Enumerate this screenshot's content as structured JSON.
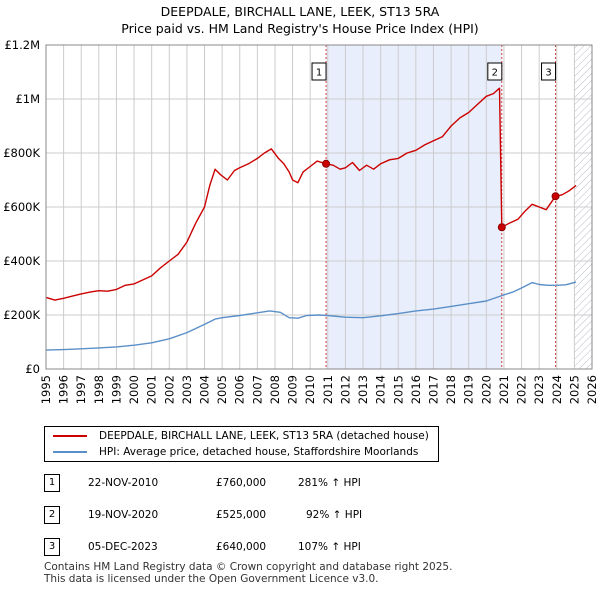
{
  "chart_data": {
    "type": "line",
    "title": "DEEPDALE, BIRCHALL LANE, LEEK, ST13 5RA",
    "subtitle": "Price paid vs. HM Land Registry's House Price Index (HPI)",
    "xlabel": "",
    "ylabel": "",
    "xlim": [
      1995,
      2026
    ],
    "ylim": [
      0,
      1200000
    ],
    "grid": true,
    "y_ticks": [
      {
        "value": 0,
        "label": "£0"
      },
      {
        "value": 200000,
        "label": "£200K"
      },
      {
        "value": 400000,
        "label": "£400K"
      },
      {
        "value": 600000,
        "label": "£600K"
      },
      {
        "value": 800000,
        "label": "£800K"
      },
      {
        "value": 1000000,
        "label": "£1M"
      },
      {
        "value": 1200000,
        "label": "£1.2M"
      }
    ],
    "x_ticks": [
      "1995",
      "1996",
      "1997",
      "1998",
      "1999",
      "2000",
      "2001",
      "2002",
      "2003",
      "2004",
      "2005",
      "2006",
      "2007",
      "2008",
      "2009",
      "2010",
      "2011",
      "2012",
      "2013",
      "2014",
      "2015",
      "2016",
      "2017",
      "2018",
      "2019",
      "2020",
      "2021",
      "2022",
      "2023",
      "2024",
      "2025",
      "2026"
    ],
    "shaded_regions": [
      {
        "from": 2010.9,
        "to": 2020.88
      },
      {
        "from": 2025.0,
        "to": 2026.0,
        "hatched": true
      }
    ],
    "series": [
      {
        "name": "DEEPDALE, BIRCHALL LANE, LEEK, ST13 5RA (detached house)",
        "color": "#cc0000",
        "points": [
          [
            1995.0,
            265000
          ],
          [
            1995.5,
            255000
          ],
          [
            1996.0,
            262000
          ],
          [
            1996.5,
            270000
          ],
          [
            1997.0,
            278000
          ],
          [
            1997.5,
            285000
          ],
          [
            1998.0,
            290000
          ],
          [
            1998.5,
            288000
          ],
          [
            1999.0,
            295000
          ],
          [
            1999.5,
            310000
          ],
          [
            2000.0,
            315000
          ],
          [
            2000.5,
            330000
          ],
          [
            2001.0,
            345000
          ],
          [
            2001.5,
            375000
          ],
          [
            2002.0,
            400000
          ],
          [
            2002.5,
            425000
          ],
          [
            2003.0,
            470000
          ],
          [
            2003.5,
            540000
          ],
          [
            2004.0,
            600000
          ],
          [
            2004.3,
            680000
          ],
          [
            2004.6,
            740000
          ],
          [
            2004.9,
            720000
          ],
          [
            2005.3,
            700000
          ],
          [
            2005.7,
            735000
          ],
          [
            2006.0,
            745000
          ],
          [
            2006.5,
            760000
          ],
          [
            2007.0,
            780000
          ],
          [
            2007.4,
            800000
          ],
          [
            2007.8,
            815000
          ],
          [
            2008.2,
            780000
          ],
          [
            2008.5,
            760000
          ],
          [
            2008.8,
            730000
          ],
          [
            2009.0,
            700000
          ],
          [
            2009.3,
            690000
          ],
          [
            2009.6,
            730000
          ],
          [
            2010.0,
            750000
          ],
          [
            2010.4,
            770000
          ],
          [
            2010.9,
            760000
          ],
          [
            2011.3,
            755000
          ],
          [
            2011.7,
            740000
          ],
          [
            2012.0,
            745000
          ],
          [
            2012.4,
            765000
          ],
          [
            2012.8,
            735000
          ],
          [
            2013.2,
            755000
          ],
          [
            2013.6,
            740000
          ],
          [
            2014.0,
            760000
          ],
          [
            2014.5,
            775000
          ],
          [
            2015.0,
            780000
          ],
          [
            2015.5,
            800000
          ],
          [
            2016.0,
            810000
          ],
          [
            2016.5,
            830000
          ],
          [
            2017.0,
            845000
          ],
          [
            2017.5,
            860000
          ],
          [
            2018.0,
            900000
          ],
          [
            2018.5,
            930000
          ],
          [
            2019.0,
            950000
          ],
          [
            2019.5,
            980000
          ],
          [
            2020.0,
            1010000
          ],
          [
            2020.4,
            1020000
          ],
          [
            2020.75,
            1040000
          ],
          [
            2020.88,
            525000
          ],
          [
            2021.3,
            540000
          ],
          [
            2021.8,
            555000
          ],
          [
            2022.2,
            585000
          ],
          [
            2022.6,
            610000
          ],
          [
            2023.0,
            600000
          ],
          [
            2023.4,
            590000
          ],
          [
            2023.93,
            640000
          ],
          [
            2024.3,
            645000
          ],
          [
            2024.7,
            660000
          ],
          [
            2025.1,
            680000
          ]
        ]
      },
      {
        "name": "HPI: Average price, detached house, Staffordshire Moorlands",
        "color": "#5b8fc8",
        "points": [
          [
            1995.0,
            70000
          ],
          [
            1996.0,
            72000
          ],
          [
            1997.0,
            75000
          ],
          [
            1998.0,
            78000
          ],
          [
            1999.0,
            82000
          ],
          [
            2000.0,
            88000
          ],
          [
            2001.0,
            97000
          ],
          [
            2002.0,
            112000
          ],
          [
            2003.0,
            135000
          ],
          [
            2004.0,
            165000
          ],
          [
            2004.6,
            185000
          ],
          [
            2005.0,
            190000
          ],
          [
            2006.0,
            198000
          ],
          [
            2007.0,
            208000
          ],
          [
            2007.7,
            215000
          ],
          [
            2008.3,
            210000
          ],
          [
            2008.8,
            190000
          ],
          [
            2009.3,
            188000
          ],
          [
            2009.8,
            198000
          ],
          [
            2010.5,
            200000
          ],
          [
            2011.0,
            198000
          ],
          [
            2012.0,
            192000
          ],
          [
            2013.0,
            190000
          ],
          [
            2014.0,
            197000
          ],
          [
            2015.0,
            205000
          ],
          [
            2016.0,
            215000
          ],
          [
            2017.0,
            222000
          ],
          [
            2018.0,
            232000
          ],
          [
            2019.0,
            242000
          ],
          [
            2020.0,
            252000
          ],
          [
            2020.88,
            272000
          ],
          [
            2021.5,
            285000
          ],
          [
            2022.0,
            300000
          ],
          [
            2022.6,
            320000
          ],
          [
            2023.0,
            313000
          ],
          [
            2023.5,
            310000
          ],
          [
            2023.93,
            310000
          ],
          [
            2024.5,
            312000
          ],
          [
            2025.1,
            322000
          ]
        ]
      }
    ],
    "annotations": [
      {
        "label": "1",
        "x": 2010.9,
        "value": 760000
      },
      {
        "label": "2",
        "x": 2020.88,
        "value": 525000
      },
      {
        "label": "3",
        "x": 2023.93,
        "value": 640000
      }
    ]
  },
  "legend": {
    "property_label": "DEEPDALE, BIRCHALL LANE, LEEK, ST13 5RA (detached house)",
    "hpi_label": "HPI: Average price, detached house, Staffordshire Moorlands"
  },
  "transactions": [
    {
      "num": "1",
      "date": "22-NOV-2010",
      "price": "£760,000",
      "change": "281% ↑ HPI"
    },
    {
      "num": "2",
      "date": "19-NOV-2020",
      "price": "£525,000",
      "change": "92% ↑ HPI"
    },
    {
      "num": "3",
      "date": "05-DEC-2023",
      "price": "£640,000",
      "change": "107% ↑ HPI"
    }
  ],
  "footer": {
    "line1": "Contains HM Land Registry data © Crown copyright and database right 2025.",
    "line2": "This data is licensed under the Open Government Licence v3.0."
  },
  "colors": {
    "property": "#cc0000",
    "hpi": "#5b8fc8",
    "shade": "#e8eefb",
    "grid": "#cccccc"
  }
}
